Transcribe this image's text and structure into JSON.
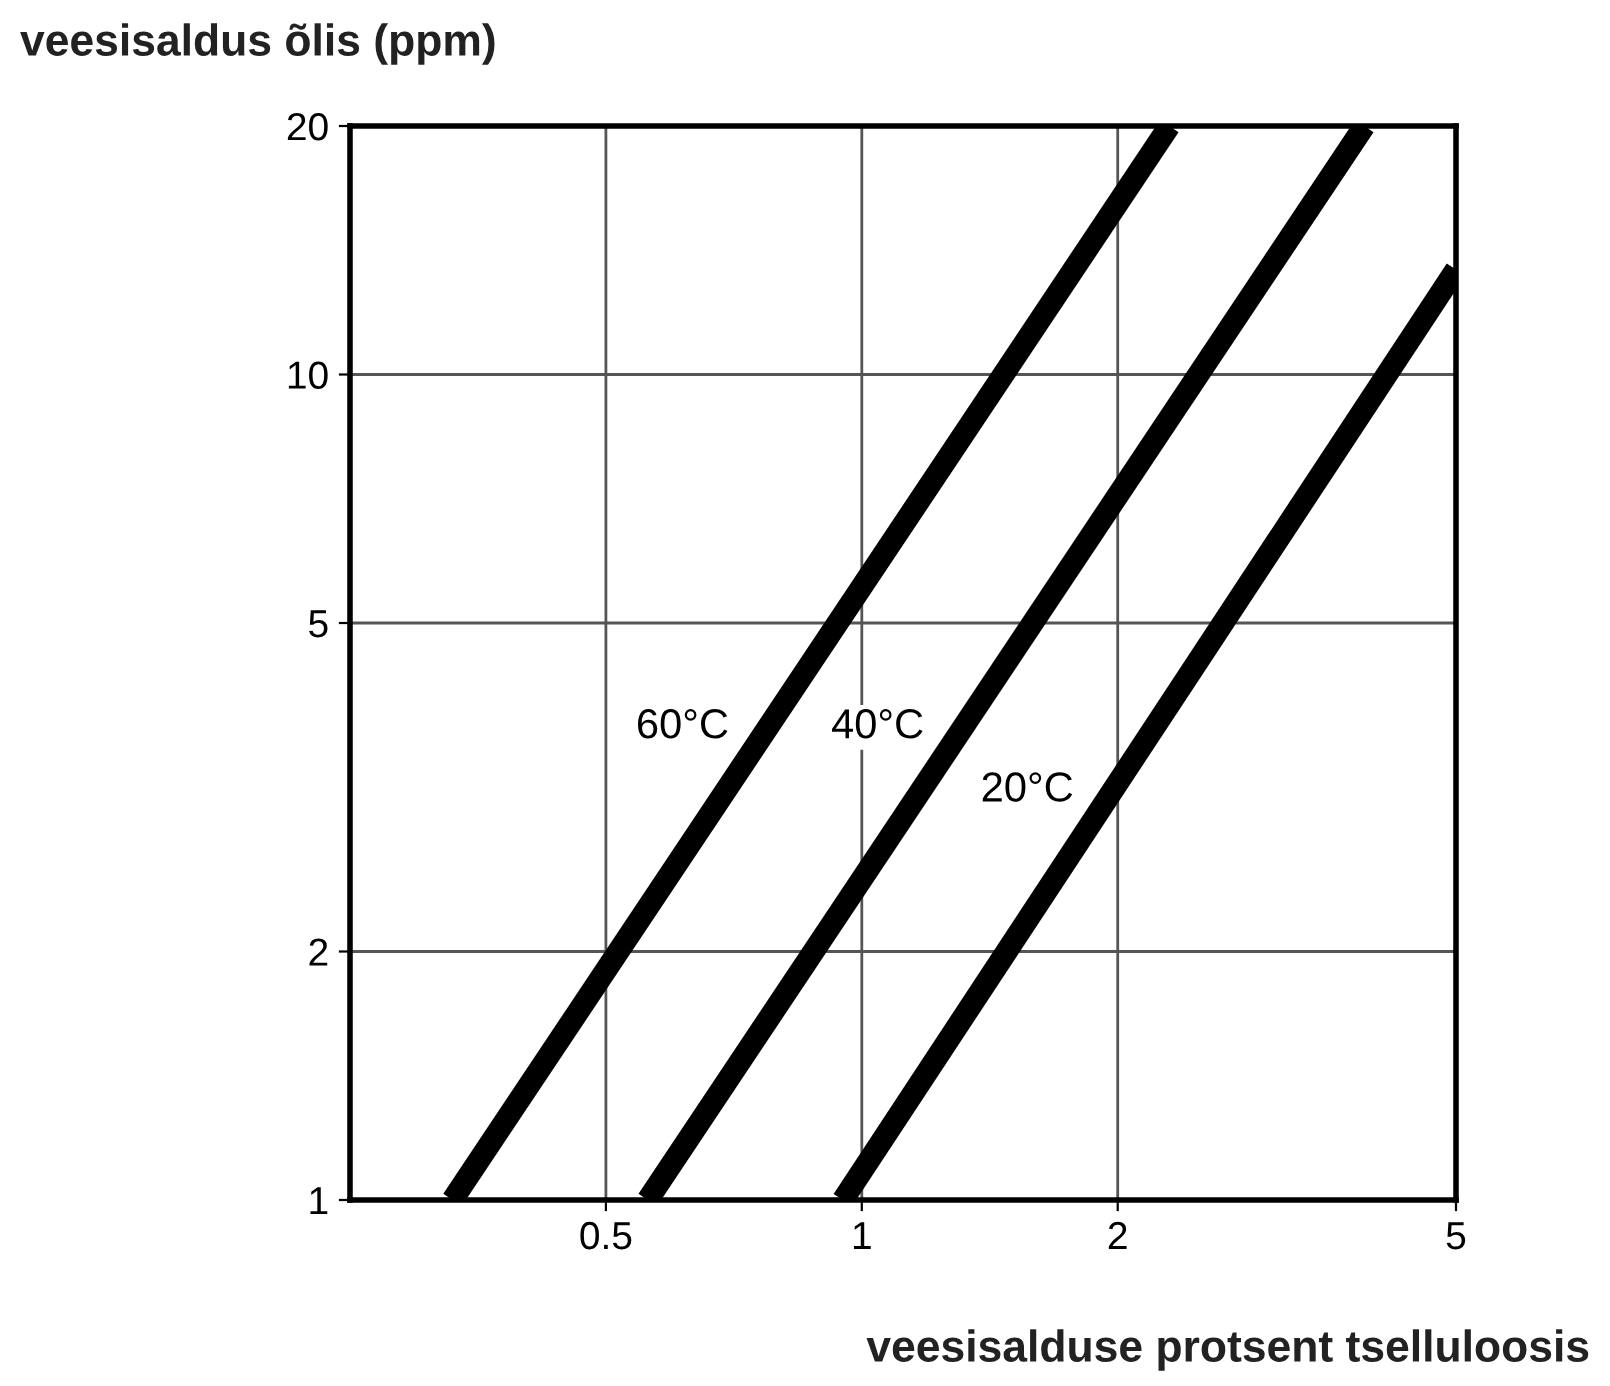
{
  "chart_data": {
    "type": "line",
    "ylabel": "veesisaldus õlis (ppm)",
    "xlabel": "veesisalduse protsent tselluloosis",
    "log": "xy",
    "xlim": [
      0.25,
      5
    ],
    "ylim": [
      1,
      20
    ],
    "xticks": [
      0.5,
      1,
      2,
      5
    ],
    "yticks": [
      1,
      2,
      5,
      10,
      20
    ],
    "grid": true,
    "marker": "none",
    "line_style": "solid",
    "series": [
      {
        "name": "60°C",
        "color": "#000000",
        "x": [
          0.33,
          2.3
        ],
        "values": [
          1,
          20
        ]
      },
      {
        "name": "40°C",
        "color": "#000000",
        "x": [
          0.56,
          3.9
        ],
        "values": [
          1,
          20
        ]
      },
      {
        "name": "20°C",
        "color": "#000000",
        "x": [
          0.95,
          5
        ],
        "values": [
          1,
          13.4
        ]
      }
    ]
  }
}
